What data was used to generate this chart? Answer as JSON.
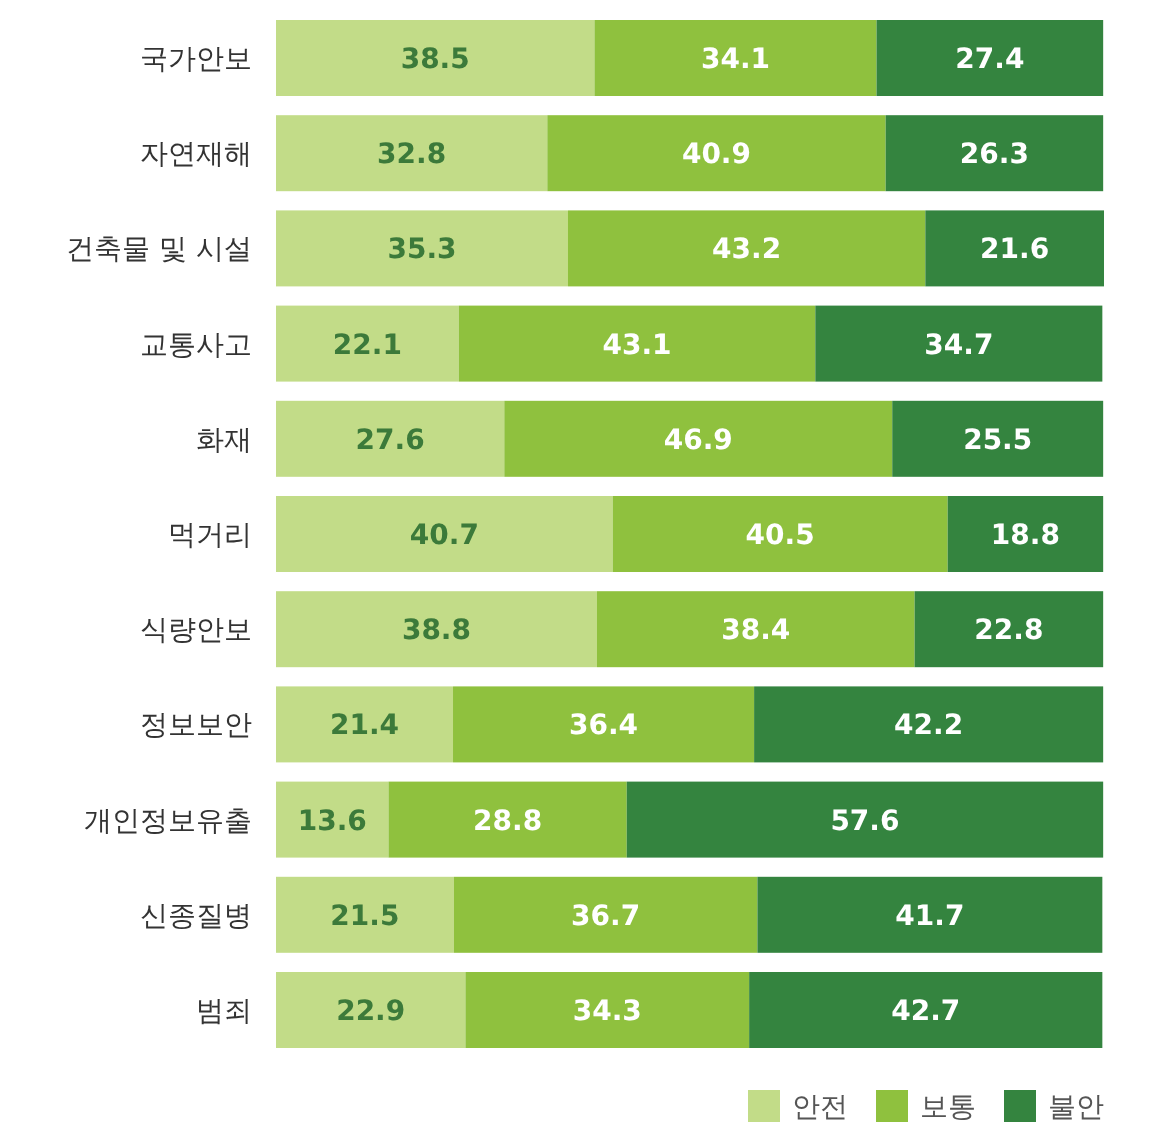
{
  "chart_data": {
    "type": "bar",
    "orientation": "horizontal",
    "stacked": true,
    "data_labels": true,
    "legend": "bottom right",
    "grid": false,
    "tick_labels": "y",
    "categories": [
      "국가안보",
      "자연재해",
      "건축물 및 시설",
      "교통사고",
      "화재",
      "먹거리",
      "식량안보",
      "정보보안",
      "개인정보유출",
      "신종질병",
      "범죄"
    ],
    "series": [
      {
        "name": "안전",
        "color": "#c2dc88",
        "values": [
          38.5,
          32.8,
          35.3,
          22.1,
          27.6,
          40.7,
          38.8,
          21.4,
          13.6,
          21.5,
          22.9
        ]
      },
      {
        "name": "보통",
        "color": "#8fc13e",
        "values": [
          34.1,
          40.9,
          43.2,
          43.1,
          46.9,
          40.5,
          38.4,
          36.4,
          28.8,
          36.7,
          34.3
        ]
      },
      {
        "name": "불안",
        "color": "#34843f",
        "values": [
          27.4,
          26.3,
          21.6,
          34.7,
          25.5,
          18.8,
          22.8,
          42.2,
          57.6,
          41.7,
          42.7
        ]
      }
    ]
  }
}
